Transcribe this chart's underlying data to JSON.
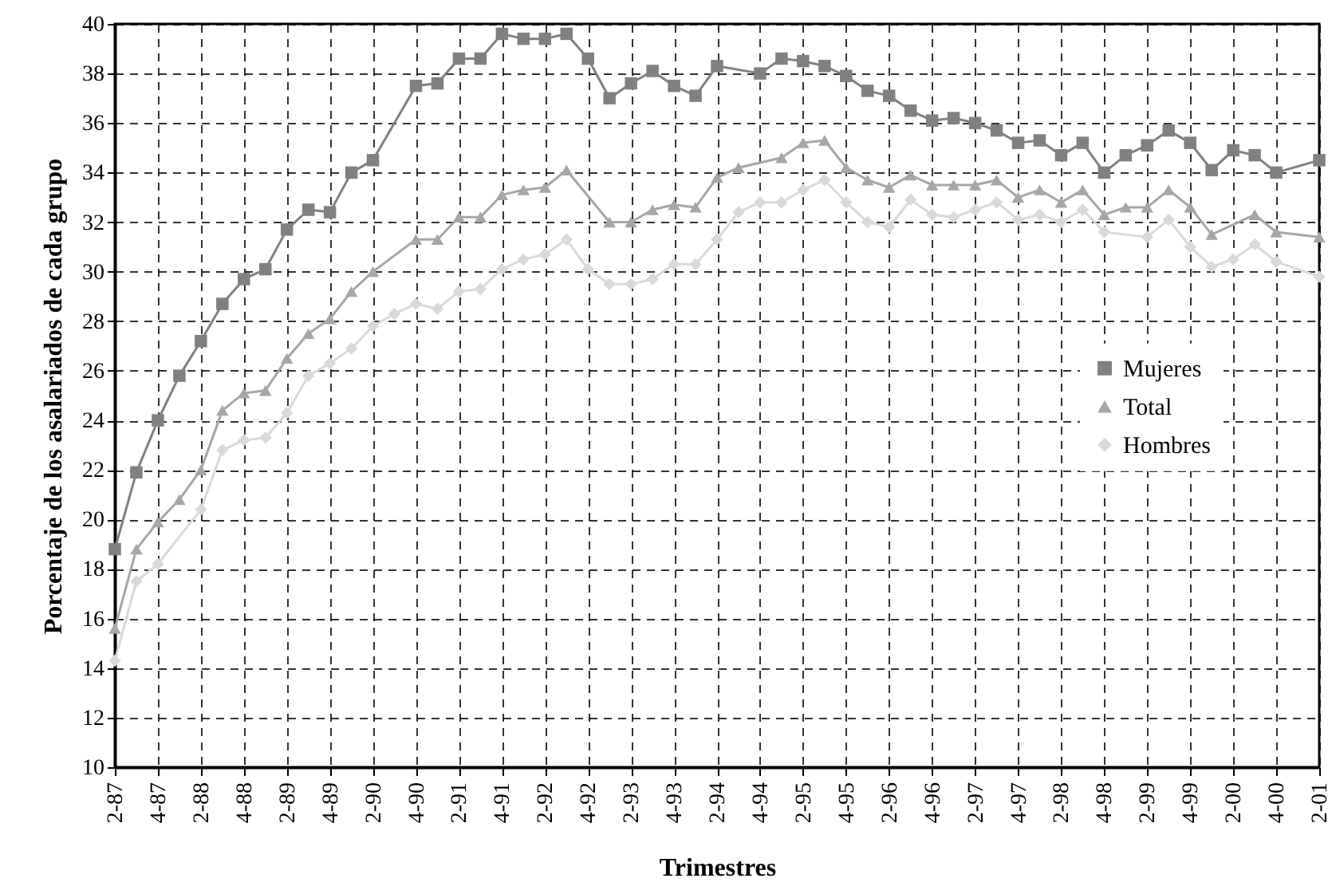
{
  "chart_data": {
    "type": "line",
    "xlabel": "Trimestres",
    "ylabel": "Porcentaje de los asalariados de cada grupo",
    "categories": [
      "2-87",
      null,
      "4-87",
      null,
      "2-88",
      null,
      "4-88",
      null,
      "2-89",
      null,
      "4-89",
      null,
      "2-90",
      null,
      "4-90",
      null,
      "2-91",
      null,
      "4-91",
      null,
      "2-92",
      null,
      "4-92",
      null,
      "2-93",
      null,
      "4-93",
      null,
      "2-94",
      null,
      "4-94",
      null,
      "2-95",
      null,
      "4-95",
      null,
      "2-96",
      null,
      "4-96",
      null,
      "2-97",
      null,
      "4-97",
      null,
      "2-98",
      null,
      "4-98",
      null,
      "2-99",
      null,
      "4-99",
      null,
      "2-00",
      null,
      "4-00",
      null,
      "2-01"
    ],
    "series": [
      {
        "name": "Mujeres",
        "color": "#808080",
        "marker": "square",
        "values": [
          18.8,
          21.9,
          24.0,
          25.8,
          27.2,
          28.7,
          29.7,
          30.1,
          31.7,
          32.5,
          32.4,
          34.0,
          34.5,
          null,
          37.5,
          37.6,
          38.6,
          38.6,
          39.6,
          39.4,
          39.4,
          39.6,
          38.6,
          37.0,
          37.6,
          38.1,
          37.5,
          37.1,
          38.3,
          null,
          38.0,
          38.6,
          38.5,
          38.3,
          37.9,
          37.3,
          37.1,
          36.5,
          36.1,
          36.2,
          36.0,
          35.7,
          35.2,
          35.3,
          34.7,
          35.2,
          34.0,
          34.7,
          35.1,
          35.7,
          35.2,
          34.1,
          34.9,
          34.7,
          34.0,
          null,
          34.5
        ]
      },
      {
        "name": "Total",
        "color": "#a6a6a6",
        "marker": "triangle",
        "values": [
          15.6,
          18.8,
          19.9,
          20.8,
          22.0,
          24.4,
          25.1,
          25.2,
          26.5,
          27.5,
          28.1,
          29.2,
          30.0,
          null,
          31.3,
          31.3,
          32.2,
          32.2,
          33.1,
          33.3,
          33.4,
          34.1,
          null,
          32.0,
          32.0,
          32.5,
          32.7,
          32.6,
          33.8,
          34.2,
          null,
          34.6,
          35.2,
          35.3,
          34.2,
          33.7,
          33.4,
          33.9,
          33.5,
          33.5,
          33.5,
          33.7,
          33.0,
          33.3,
          32.8,
          33.3,
          32.3,
          32.6,
          32.6,
          33.3,
          32.6,
          31.5,
          null,
          32.3,
          31.6,
          null,
          31.4
        ]
      },
      {
        "name": "Hombres",
        "color": "#d9d9d9",
        "marker": "diamond",
        "values": [
          14.3,
          17.5,
          18.2,
          null,
          20.4,
          22.8,
          23.2,
          23.3,
          24.3,
          25.8,
          26.3,
          26.9,
          27.8,
          28.3,
          28.7,
          28.5,
          29.2,
          29.3,
          30.1,
          30.5,
          30.7,
          31.3,
          30.1,
          29.5,
          29.5,
          29.7,
          30.3,
          30.3,
          31.3,
          32.4,
          32.8,
          32.8,
          33.3,
          33.7,
          32.8,
          32.0,
          31.8,
          32.9,
          32.3,
          32.2,
          32.5,
          32.8,
          32.1,
          32.3,
          32.0,
          32.5,
          31.6,
          null,
          31.4,
          32.1,
          31.0,
          30.2,
          30.5,
          31.1,
          30.4,
          null,
          29.8
        ]
      }
    ],
    "ylim": [
      10,
      40
    ],
    "yticks": [
      10,
      12,
      14,
      16,
      18,
      20,
      22,
      24,
      26,
      28,
      30,
      32,
      34,
      36,
      38,
      40
    ],
    "grid": true,
    "legend": "right",
    "line_style": "solid"
  }
}
